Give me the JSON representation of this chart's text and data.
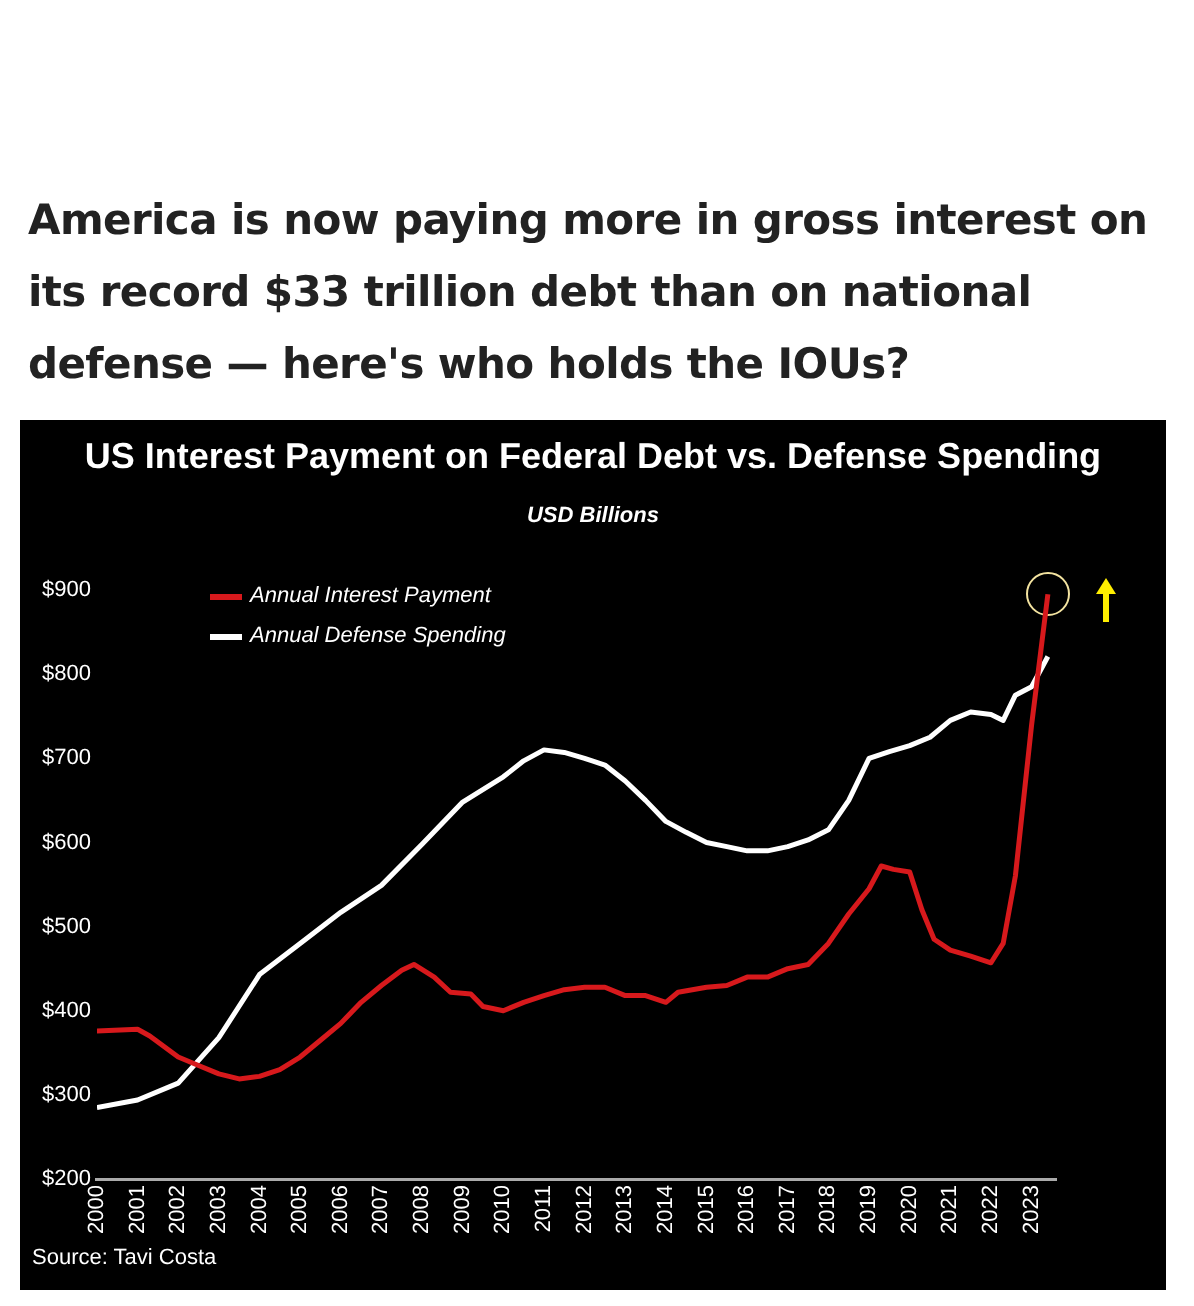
{
  "chart_data": {
    "type": "line",
    "title": "US Interest Payment on Federal Debt vs. Defense Spending",
    "subtitle": "USD Billions",
    "annotations": [
      "America is now paying more in gross interest on its record $33 trillion debt than on national defense — here's who holds the IOUs?",
      "Source: Tavi Costa"
    ],
    "xlim": [
      2000,
      2023.6
    ],
    "xticks": [
      2000,
      2001,
      2002,
      2003,
      2004,
      2005,
      2006,
      2007,
      2008,
      2009,
      2010,
      2011,
      2012,
      2013,
      2014,
      2015,
      2016,
      2017,
      2018,
      2019,
      2020,
      2021,
      2022,
      2023
    ],
    "ylim": [
      200,
      900
    ],
    "yticks": [
      {
        "value": 200,
        "label": "$200"
      },
      {
        "value": 300,
        "label": "$300"
      },
      {
        "value": 400,
        "label": "$400"
      },
      {
        "value": 500,
        "label": "$500"
      },
      {
        "value": 600,
        "label": "$600"
      },
      {
        "value": 700,
        "label": "$700"
      },
      {
        "value": 800,
        "label": "$800"
      },
      {
        "value": 900,
        "label": "$900"
      }
    ],
    "grid": false,
    "legend": "top left",
    "marker": "none",
    "line_style": "solid",
    "series": [
      {
        "name": "Annual Interest Payment",
        "color": "#d7191c",
        "x": [
          2000,
          2001,
          2001.3,
          2002,
          2002.5,
          2003,
          2003.5,
          2004,
          2004.5,
          2005,
          2005.5,
          2006,
          2006.5,
          2007,
          2007.5,
          2007.8,
          2008.3,
          2008.7,
          2009.2,
          2009.5,
          2010,
          2010.5,
          2011,
          2011.5,
          2012,
          2012.5,
          2013,
          2013.5,
          2014,
          2014.3,
          2015,
          2015.5,
          2016,
          2016.5,
          2017,
          2017.5,
          2018,
          2018.5,
          2019,
          2019.3,
          2019.6,
          2020,
          2020.3,
          2020.6,
          2021,
          2021.5,
          2022,
          2022.3,
          2022.6,
          2023,
          2023.4
        ],
        "values": [
          376,
          378,
          370,
          345,
          335,
          325,
          319,
          322,
          330,
          345,
          365,
          385,
          410,
          430,
          448,
          455,
          440,
          422,
          420,
          405,
          400,
          410,
          418,
          425,
          428,
          428,
          418,
          418,
          410,
          422,
          428,
          430,
          440,
          440,
          450,
          455,
          480,
          515,
          545,
          572,
          568,
          565,
          520,
          485,
          472,
          465,
          457,
          480,
          560,
          740,
          895
        ]
      },
      {
        "name": "Annual Defense Spending",
        "color": "#ffffff",
        "x": [
          2000,
          2001,
          2002,
          2003,
          2004,
          2005,
          2006,
          2007,
          2008,
          2009,
          2010,
          2010.5,
          2011,
          2011.5,
          2012,
          2012.5,
          2013,
          2013.5,
          2014,
          2014.5,
          2015,
          2015.5,
          2016,
          2016.5,
          2017,
          2017.5,
          2018,
          2018.5,
          2019,
          2019.5,
          2020,
          2020.5,
          2021,
          2021.5,
          2022,
          2022.3,
          2022.6,
          2023,
          2023.4
        ],
        "values": [
          285,
          294,
          314,
          368,
          443,
          480,
          517,
          549,
          598,
          648,
          678,
          697,
          710,
          707,
          700,
          692,
          673,
          650,
          625,
          612,
          600,
          595,
          590,
          590,
          595,
          603,
          615,
          650,
          700,
          708,
          715,
          725,
          745,
          755,
          752,
          745,
          775,
          785,
          821
        ]
      }
    ]
  }
}
